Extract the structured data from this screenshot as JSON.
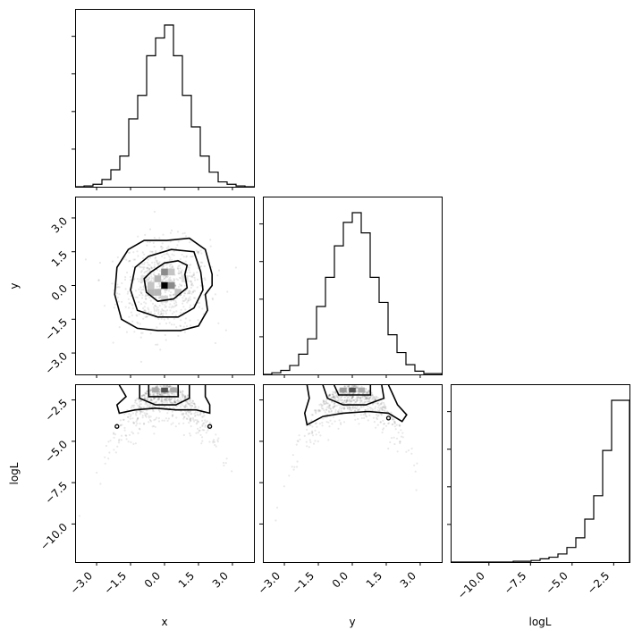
{
  "chart_data": {
    "type": "corner",
    "variables": [
      "x",
      "y",
      "logL"
    ],
    "axis_labels": {
      "x": "x",
      "y": "y",
      "logL": "logL"
    },
    "ranges": {
      "x": [
        -3.95,
        3.95
      ],
      "y": [
        -3.95,
        3.95
      ],
      "logL": [
        -12.3,
        -1.55
      ]
    },
    "ticks": {
      "x": {
        "values": [
          -3.0,
          -1.5,
          0.0,
          1.5,
          3.0
        ],
        "labels": [
          "−3.0",
          "−1.5",
          "0.0",
          "1.5",
          "3.0"
        ]
      },
      "y": {
        "values": [
          -3.0,
          -1.5,
          0.0,
          1.5,
          3.0
        ],
        "labels": [
          "−3.0",
          "−1.5",
          "0.0",
          "1.5",
          "3.0"
        ]
      },
      "logL": {
        "values": [
          -10.0,
          -7.5,
          -5.0,
          -2.5
        ],
        "labels": [
          "−10.0",
          "−7.5",
          "−5.0",
          "−2.5"
        ]
      }
    },
    "histograms": [
      {
        "variable": "x",
        "bin_edges": [
          -3.95,
          -3.555,
          -3.16,
          -2.765,
          -2.37,
          -1.975,
          -1.58,
          -1.185,
          -0.79,
          -0.395,
          0.0,
          0.395,
          0.79,
          1.185,
          1.58,
          1.975,
          2.37,
          2.765,
          3.16,
          3.555,
          3.95
        ],
        "counts": [
          0,
          1,
          3,
          9,
          21,
          38,
          84,
          113,
          162,
          184,
          200,
          162,
          113,
          74,
          38,
          18,
          6,
          3,
          1,
          0
        ]
      },
      {
        "variable": "y",
        "bin_edges": [
          -3.95,
          -3.555,
          -3.16,
          -2.765,
          -2.37,
          -1.975,
          -1.58,
          -1.185,
          -0.79,
          -0.395,
          0.0,
          0.395,
          0.79,
          1.185,
          1.58,
          1.975,
          2.37,
          2.765,
          3.16,
          3.555,
          3.95
        ],
        "counts": [
          0,
          2,
          5,
          11,
          25,
          44,
          84,
          120,
          159,
          188,
          200,
          175,
          120,
          89,
          49,
          27,
          12,
          4,
          1,
          1
        ]
      },
      {
        "variable": "logL",
        "bin_edges": [
          -12.3,
          -11.7625,
          -11.225,
          -10.6875,
          -10.15,
          -9.6125,
          -9.075,
          -8.5375,
          -8.0,
          -7.4625,
          -6.925,
          -6.3875,
          -5.85,
          -5.3125,
          -4.775,
          -4.2375,
          -3.7,
          -3.1625,
          -2.625,
          -2.0875,
          -1.55
        ],
        "counts": [
          0,
          0,
          0,
          0,
          0,
          0,
          0,
          1,
          1,
          2,
          4,
          6,
          10,
          18,
          30,
          53,
          82,
          138,
          200,
          200
        ]
      }
    ],
    "density_panels": [
      {
        "x": "x",
        "y": "y",
        "contour_levels": [
          [
            [
              0.9,
              0.5
            ],
            [
              1.0,
              0.9
            ],
            [
              0.6,
              1.1
            ],
            [
              0.0,
              1.0
            ],
            [
              -0.6,
              0.6
            ],
            [
              -0.9,
              0.3
            ],
            [
              -0.8,
              -0.3
            ],
            [
              -0.3,
              -0.7
            ],
            [
              0.4,
              -0.6
            ],
            [
              1.0,
              -0.1
            ]
          ],
          [
            [
              1.6,
              0.6
            ],
            [
              1.3,
              1.5
            ],
            [
              0.3,
              1.6
            ],
            [
              -0.7,
              1.3
            ],
            [
              -1.3,
              0.8
            ],
            [
              -1.5,
              -0.2
            ],
            [
              -1.2,
              -1.1
            ],
            [
              -0.3,
              -1.4
            ],
            [
              0.6,
              -1.4
            ],
            [
              1.3,
              -1.0
            ],
            [
              1.7,
              -0.2
            ]
          ],
          [
            [
              2.1,
              0.5
            ],
            [
              1.8,
              1.6
            ],
            [
              1.1,
              2.1
            ],
            [
              0.1,
              2.0
            ],
            [
              -0.9,
              2.0
            ],
            [
              -1.6,
              1.6
            ],
            [
              -2.1,
              0.8
            ],
            [
              -2.2,
              -0.4
            ],
            [
              -1.9,
              -1.5
            ],
            [
              -1.2,
              -1.9
            ],
            [
              -0.3,
              -2.0
            ],
            [
              0.7,
              -2.0
            ],
            [
              1.5,
              -1.8
            ],
            [
              1.9,
              -1.1
            ],
            [
              1.8,
              -0.4
            ],
            [
              2.1,
              0.0
            ]
          ]
        ],
        "hist_cells": [
          {
            "x": 0.0,
            "y": 0.0,
            "w": 0.16
          },
          {
            "x": 0.3,
            "y": 0.0,
            "w": 0.08
          },
          {
            "x": -0.3,
            "y": -0.3,
            "w": 0.05
          },
          {
            "x": -0.6,
            "y": 0.0,
            "w": 0.04
          },
          {
            "x": 0.3,
            "y": 0.6,
            "w": 0.04
          },
          {
            "x": 0.0,
            "y": 0.6,
            "w": 0.08
          },
          {
            "x": -0.3,
            "y": 0.3,
            "w": 0.05
          },
          {
            "x": 0.6,
            "y": -0.3,
            "w": 0.04
          },
          {
            "x": -0.6,
            "y": -0.3,
            "w": 0.05
          },
          {
            "x": 0.0,
            "y": -0.6,
            "w": 0.03
          },
          {
            "x": -0.9,
            "y": 0.3,
            "w": 0.02
          },
          {
            "x": 0.9,
            "y": 0.3,
            "w": 0.02
          }
        ],
        "marker": {
          "x": 0.0,
          "y": 0.0
        }
      },
      {
        "x": "x",
        "y": "logL",
        "contour_levels": [
          [
            [
              -0.7,
              -1.6
            ],
            [
              -0.7,
              -2.3
            ],
            [
              0.6,
              -2.3
            ],
            [
              0.6,
              -1.6
            ]
          ],
          [
            [
              -1.1,
              -1.6
            ],
            [
              -1.1,
              -2.4
            ],
            [
              -0.4,
              -2.8
            ],
            [
              0.5,
              -2.8
            ],
            [
              1.1,
              -2.4
            ],
            [
              1.1,
              -1.6
            ]
          ],
          [
            [
              -2.0,
              -1.6
            ],
            [
              -1.7,
              -2.3
            ],
            [
              -2.1,
              -2.8
            ],
            [
              -2.0,
              -3.3
            ],
            [
              -1.3,
              -3.1
            ],
            [
              -0.4,
              -3.0
            ],
            [
              0.5,
              -3.1
            ],
            [
              1.4,
              -3.1
            ],
            [
              2.0,
              -3.3
            ],
            [
              2.0,
              -2.8
            ],
            [
              1.8,
              -2.3
            ],
            [
              1.8,
              -1.6
            ]
          ]
        ],
        "hist_cells": [
          {
            "x": 0.0,
            "y": -1.9,
            "w": 0.12
          },
          {
            "x": -0.4,
            "y": -1.9,
            "w": 0.06
          },
          {
            "x": 0.4,
            "y": -1.9,
            "w": 0.06
          }
        ],
        "scatter_region": {
          "x_min": -3.3,
          "x_max": 3.3,
          "y_min": -9.5,
          "y_max": -3.5
        },
        "marker_points": [
          [
            -2.1,
            -4.1
          ],
          [
            2.0,
            -4.1
          ]
        ]
      },
      {
        "x": "y",
        "y": "logL",
        "contour_levels": [
          [
            [
              -0.8,
              -1.6
            ],
            [
              -0.6,
              -2.2
            ],
            [
              0.8,
              -2.2
            ],
            [
              0.8,
              -1.6
            ]
          ],
          [
            [
              -1.3,
              -1.6
            ],
            [
              -1.1,
              -2.4
            ],
            [
              -0.4,
              -2.8
            ],
            [
              0.6,
              -2.8
            ],
            [
              1.4,
              -2.4
            ],
            [
              1.3,
              -1.6
            ]
          ],
          [
            [
              -2.0,
              -1.6
            ],
            [
              -1.9,
              -2.4
            ],
            [
              -2.1,
              -3.3
            ],
            [
              -2.0,
              -4.0
            ],
            [
              -1.3,
              -3.5
            ],
            [
              -0.4,
              -3.3
            ],
            [
              0.7,
              -3.2
            ],
            [
              1.6,
              -3.3
            ],
            [
              2.2,
              -3.8
            ],
            [
              2.4,
              -3.4
            ],
            [
              2.0,
              -2.8
            ],
            [
              1.8,
              -2.2
            ],
            [
              1.6,
              -1.6
            ]
          ]
        ],
        "hist_cells": [
          {
            "x": 0.0,
            "y": -1.9,
            "w": 0.12
          },
          {
            "x": -0.4,
            "y": -1.9,
            "w": 0.07
          },
          {
            "x": 0.4,
            "y": -1.9,
            "w": 0.06
          }
        ],
        "scatter_region": {
          "x_min": -3.3,
          "x_max": 3.3,
          "y_min": -9.5,
          "y_max": -3.5
        },
        "marker_points": [
          [
            1.6,
            -3.6
          ]
        ]
      }
    ]
  }
}
